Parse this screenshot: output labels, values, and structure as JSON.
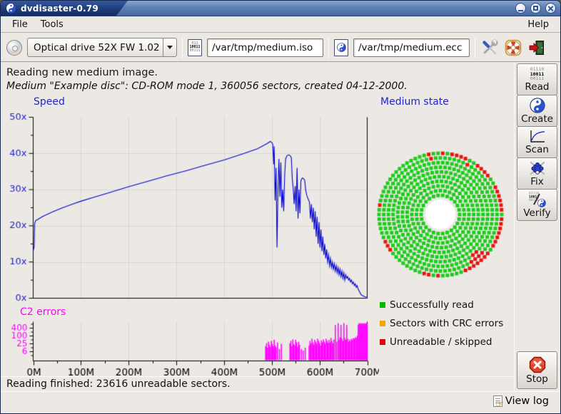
{
  "window": {
    "title": "dvdisaster-0.79"
  },
  "menu": {
    "left": [
      "File",
      "Tools"
    ],
    "right": [
      "Help"
    ]
  },
  "toolbar": {
    "drive": {
      "value": "Optical drive 52X FW 1.02"
    },
    "iso": {
      "value": "/var/tmp/medium.iso"
    },
    "ecc": {
      "value": "/var/tmp/medium.ecc"
    }
  },
  "icons": {
    "read_lines": [
      "01110",
      "10011",
      "00111"
    ],
    "verify_lines": [
      "01110",
      "10011",
      "00111"
    ],
    "iso_lines": [
      "011",
      "10011",
      "00111"
    ]
  },
  "status": {
    "line1": "Reading new medium image.",
    "line2": "Medium \"Example disc\": CD-ROM mode 1, 360056 sectors, created 04-12-2000."
  },
  "legend": [
    {
      "label": "Successfully read",
      "color": "#00b800"
    },
    {
      "label": "Sectors with CRC errors",
      "color": "#f0a500"
    },
    {
      "label": "Unreadable / skipped",
      "color": "#dd0000"
    }
  ],
  "sidebar": {
    "buttons": [
      {
        "label": "Read"
      },
      {
        "label": "Create"
      },
      {
        "label": "Scan"
      },
      {
        "label": "Fix"
      },
      {
        "label": "Verify"
      }
    ],
    "stop_label": "Stop"
  },
  "footer": {
    "status": "Reading finished: 23616 unreadable sectors.",
    "view_log": "View log"
  },
  "chart_data": [
    {
      "id": "speed",
      "type": "line",
      "title": "Speed",
      "color": "#0000cd",
      "xlim": [
        0,
        700
      ],
      "ylim": [
        0,
        50
      ],
      "grid": true,
      "y_ticks": [
        {
          "v": 0,
          "label": "0x"
        },
        {
          "v": 10,
          "label": "10x"
        },
        {
          "v": 20,
          "label": "20x"
        },
        {
          "v": 30,
          "label": "30x"
        },
        {
          "v": 40,
          "label": "40x"
        },
        {
          "v": 50,
          "label": "50x"
        }
      ],
      "points": [
        [
          0,
          13
        ],
        [
          1,
          13.6
        ],
        [
          2,
          14.2
        ],
        [
          3,
          20.6
        ],
        [
          5,
          21.4
        ],
        [
          10,
          21.8
        ],
        [
          20,
          22.6
        ],
        [
          40,
          23.8
        ],
        [
          60,
          24.9
        ],
        [
          80,
          25.9
        ],
        [
          100,
          26.8
        ],
        [
          130,
          28
        ],
        [
          160,
          29.2
        ],
        [
          200,
          30.8
        ],
        [
          240,
          32.3
        ],
        [
          280,
          33.8
        ],
        [
          320,
          35.2
        ],
        [
          360,
          36.7
        ],
        [
          400,
          38.2
        ],
        [
          440,
          39.9
        ],
        [
          470,
          41.3
        ],
        [
          490,
          42.7
        ],
        [
          497,
          43.3
        ],
        [
          500,
          43
        ],
        [
          502,
          42.6
        ],
        [
          504,
          37
        ],
        [
          505,
          42
        ],
        [
          507,
          27
        ],
        [
          509,
          36
        ],
        [
          511,
          14
        ],
        [
          513,
          30
        ],
        [
          515,
          38.5
        ],
        [
          517,
          28
        ],
        [
          519,
          37.5
        ],
        [
          521,
          25
        ],
        [
          523,
          30
        ],
        [
          525,
          24
        ],
        [
          527,
          34
        ],
        [
          529,
          38.5
        ],
        [
          532,
          39.4
        ],
        [
          536,
          39.6
        ],
        [
          539,
          39.3
        ],
        [
          541,
          38.8
        ],
        [
          543,
          33
        ],
        [
          545,
          30
        ],
        [
          547,
          26
        ],
        [
          549,
          31
        ],
        [
          551,
          24
        ],
        [
          553,
          36
        ],
        [
          555,
          22
        ],
        [
          557,
          30
        ],
        [
          559,
          23.5
        ],
        [
          561,
          32.5
        ],
        [
          564,
          33.2
        ],
        [
          567,
          33
        ],
        [
          569,
          32.6
        ],
        [
          571,
          30
        ],
        [
          573,
          28.5
        ],
        [
          576,
          27.5
        ],
        [
          579,
          26.5
        ],
        [
          581,
          22
        ],
        [
          583,
          26
        ],
        [
          585,
          21
        ],
        [
          587,
          25
        ],
        [
          589,
          19
        ],
        [
          591,
          24
        ],
        [
          593,
          17
        ],
        [
          595,
          22.5
        ],
        [
          597,
          15
        ],
        [
          599,
          21
        ],
        [
          601,
          14
        ],
        [
          603,
          19
        ],
        [
          605,
          13
        ],
        [
          607,
          17
        ],
        [
          609,
          12
        ],
        [
          611,
          15
        ],
        [
          613,
          11
        ],
        [
          615,
          13.5
        ],
        [
          617,
          10
        ],
        [
          619,
          12
        ],
        [
          621,
          9
        ],
        [
          623,
          11
        ],
        [
          625,
          8.5
        ],
        [
          627,
          10
        ],
        [
          629,
          8
        ],
        [
          631,
          9.5
        ],
        [
          633,
          7.5
        ],
        [
          635,
          9
        ],
        [
          637,
          7
        ],
        [
          639,
          8.5
        ],
        [
          641,
          6.5
        ],
        [
          643,
          8
        ],
        [
          645,
          6
        ],
        [
          647,
          7.5
        ],
        [
          649,
          5.5
        ],
        [
          651,
          7
        ],
        [
          653,
          5
        ],
        [
          655,
          6.5
        ],
        [
          657,
          5.5
        ],
        [
          659,
          6
        ],
        [
          661,
          5
        ],
        [
          663,
          5.5
        ],
        [
          665,
          4.5
        ],
        [
          667,
          5
        ],
        [
          669,
          4
        ],
        [
          671,
          4.5
        ],
        [
          673,
          3.5
        ],
        [
          675,
          4
        ],
        [
          677,
          3
        ],
        [
          679,
          3.5
        ],
        [
          681,
          2.5
        ],
        [
          683,
          2
        ],
        [
          685,
          1.5
        ],
        [
          687,
          1
        ],
        [
          689,
          0.8
        ],
        [
          692,
          0.6
        ],
        [
          695,
          0.4
        ],
        [
          700,
          0.3
        ]
      ],
      "x_ticks": [
        {
          "v": 0,
          "label": "0M"
        },
        {
          "v": 100,
          "label": "100M"
        },
        {
          "v": 200,
          "label": "200M"
        },
        {
          "v": 300,
          "label": "300M"
        },
        {
          "v": 400,
          "label": "400M"
        },
        {
          "v": 500,
          "label": "500M"
        },
        {
          "v": 600,
          "label": "600M"
        },
        {
          "v": 700,
          "label": "700M"
        }
      ]
    },
    {
      "id": "c2_errors",
      "type": "bar",
      "title": "C2 errors",
      "color": "#ff00ff",
      "scale": "log",
      "y_ticks": [
        {
          "v": 6,
          "label": "6"
        },
        {
          "v": 25,
          "label": "25"
        },
        {
          "v": 100,
          "label": "100"
        },
        {
          "v": 400,
          "label": "400"
        }
      ],
      "bars": [
        [
          487,
          0.38
        ],
        [
          489,
          0.46
        ],
        [
          491,
          0.34
        ],
        [
          493,
          0.5
        ],
        [
          495,
          0.42
        ],
        [
          497,
          0.36
        ],
        [
          499,
          0.52
        ],
        [
          501,
          0.44
        ],
        [
          503,
          0.38
        ],
        [
          505,
          0.55
        ],
        [
          507,
          0.4
        ],
        [
          509,
          0.35
        ],
        [
          512,
          0.48
        ],
        [
          516,
          0.3
        ],
        [
          520,
          0.44
        ],
        [
          538,
          0.46
        ],
        [
          540,
          0.52
        ],
        [
          542,
          0.38
        ],
        [
          544,
          0.56
        ],
        [
          546,
          0.44
        ],
        [
          548,
          0.4
        ],
        [
          550,
          0.55
        ],
        [
          552,
          0.48
        ],
        [
          554,
          0.36
        ],
        [
          556,
          0.5
        ],
        [
          558,
          0.42
        ],
        [
          562,
          0.3
        ],
        [
          566,
          0.26
        ],
        [
          570,
          0.34
        ],
        [
          578,
          0.4
        ],
        [
          580,
          0.52
        ],
        [
          582,
          0.45
        ],
        [
          584,
          0.58
        ],
        [
          586,
          0.48
        ],
        [
          588,
          0.42
        ],
        [
          590,
          0.55
        ],
        [
          592,
          0.5
        ],
        [
          594,
          0.44
        ],
        [
          596,
          0.58
        ],
        [
          598,
          0.52
        ],
        [
          600,
          0.46
        ],
        [
          602,
          0.4
        ],
        [
          604,
          0.54
        ],
        [
          606,
          0.48
        ],
        [
          608,
          0.56
        ],
        [
          610,
          0.5
        ],
        [
          612,
          0.44
        ],
        [
          614,
          0.58
        ],
        [
          616,
          0.52
        ],
        [
          618,
          0.46
        ],
        [
          620,
          0.55
        ],
        [
          622,
          0.48
        ],
        [
          624,
          0.6
        ],
        [
          626,
          0.52
        ],
        [
          628,
          0.46
        ],
        [
          630,
          0.56
        ],
        [
          633,
          0.95
        ],
        [
          636,
          0.5
        ],
        [
          639,
          1
        ],
        [
          641,
          0.55
        ],
        [
          643,
          0.62
        ],
        [
          645,
          0.95
        ],
        [
          647,
          0.58
        ],
        [
          649,
          0.52
        ],
        [
          651,
          1
        ],
        [
          653,
          0.6
        ],
        [
          655,
          0.55
        ],
        [
          657,
          0.95
        ],
        [
          659,
          0.58
        ],
        [
          661,
          0.5
        ],
        [
          663,
          0.56
        ],
        [
          665,
          0.52
        ],
        [
          667,
          0.58
        ],
        [
          669,
          0.55
        ],
        [
          671,
          0.6
        ],
        [
          673,
          0.58
        ],
        [
          675,
          0.62
        ],
        [
          677,
          0.6
        ],
        [
          679,
          0.66
        ],
        [
          681,
          0.95
        ],
        [
          682.5,
          1
        ],
        [
          684,
          0.97
        ],
        [
          685.5,
          1
        ],
        [
          687,
          0.98
        ],
        [
          688.5,
          1
        ],
        [
          690,
          0.97
        ],
        [
          691.5,
          1
        ],
        [
          693,
          0.98
        ],
        [
          694.5,
          1
        ],
        [
          696,
          0.97
        ],
        [
          697.5,
          1
        ],
        [
          699,
          0.98
        ],
        [
          700,
          1
        ]
      ]
    },
    {
      "id": "medium_state",
      "type": "disc-grid",
      "title": "Medium state",
      "rings": 10,
      "hole_radius": 21,
      "ring_start": 27,
      "ring_step": 6.55,
      "cell": 5,
      "green": "#1ecb1e",
      "red": "#e81410",
      "red_arcs": [
        {
          "ring": 9,
          "from": -62,
          "to": -38
        },
        {
          "ring": 9,
          "from": -34,
          "to": -2
        },
        {
          "ring": 9,
          "from": 2,
          "to": 30
        },
        {
          "ring": 9,
          "from": 36,
          "to": 57
        },
        {
          "ring": 9,
          "from": 63,
          "to": 80
        },
        {
          "ring": 9,
          "from": 86,
          "to": 91
        },
        {
          "ring": 9,
          "from": 97,
          "to": 104
        },
        {
          "ring": 8,
          "from": -57,
          "to": -40
        }
      ],
      "red_cells": [
        [
          9,
          172
        ],
        [
          9,
          206
        ],
        [
          9,
          214
        ],
        [
          9,
          258
        ],
        [
          9,
          267
        ],
        [
          9,
          295
        ],
        [
          8,
          100
        ],
        [
          7,
          -48
        ],
        [
          8,
          62
        ]
      ]
    }
  ]
}
